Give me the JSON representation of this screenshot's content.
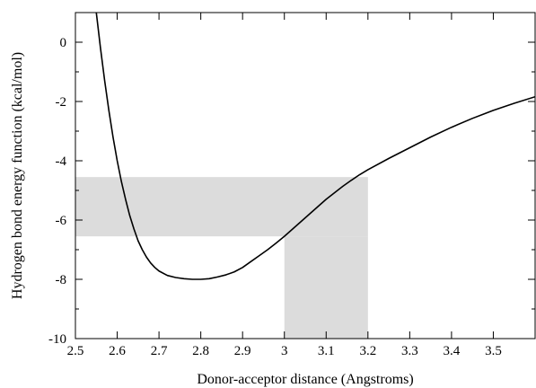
{
  "chart_data": {
    "type": "line",
    "title": "",
    "xlabel": "Donor-acceptor distance (Angstroms)",
    "ylabel": "Hydrogen bond energy function (kcal/mol)",
    "xlim": [
      2.5,
      3.6
    ],
    "ylim": [
      -10,
      1
    ],
    "xticks": [
      2.5,
      2.6,
      2.7,
      2.8,
      2.9,
      3.0,
      3.1,
      3.2,
      3.3,
      3.4,
      3.5
    ],
    "xtick_labels": [
      "2.5",
      "2.6",
      "2.7",
      "2.8",
      "2.9",
      "3",
      "3.1",
      "3.2",
      "3.3",
      "3.4",
      "3.5"
    ],
    "yticks": [
      -10,
      -8,
      -6,
      -4,
      -2,
      0
    ],
    "ytick_labels": [
      "-10",
      "-8",
      "-6",
      "-4",
      "-2",
      "0"
    ],
    "grid": false,
    "legend": "none",
    "series": [
      {
        "color": "#000000",
        "points": [
          [
            2.55,
            1.0
          ],
          [
            2.56,
            -0.2
          ],
          [
            2.57,
            -1.3
          ],
          [
            2.58,
            -2.3
          ],
          [
            2.59,
            -3.2
          ],
          [
            2.6,
            -4.0
          ],
          [
            2.61,
            -4.7
          ],
          [
            2.62,
            -5.3
          ],
          [
            2.63,
            -5.85
          ],
          [
            2.64,
            -6.3
          ],
          [
            2.65,
            -6.7
          ],
          [
            2.66,
            -7.0
          ],
          [
            2.67,
            -7.25
          ],
          [
            2.68,
            -7.45
          ],
          [
            2.69,
            -7.6
          ],
          [
            2.7,
            -7.72
          ],
          [
            2.72,
            -7.87
          ],
          [
            2.74,
            -7.94
          ],
          [
            2.76,
            -7.98
          ],
          [
            2.78,
            -8.0
          ],
          [
            2.8,
            -8.0
          ],
          [
            2.82,
            -7.98
          ],
          [
            2.84,
            -7.92
          ],
          [
            2.86,
            -7.85
          ],
          [
            2.88,
            -7.75
          ],
          [
            2.9,
            -7.6
          ],
          [
            2.92,
            -7.4
          ],
          [
            2.94,
            -7.2
          ],
          [
            2.96,
            -7.0
          ],
          [
            2.98,
            -6.78
          ],
          [
            3.0,
            -6.55
          ],
          [
            3.02,
            -6.3
          ],
          [
            3.04,
            -6.05
          ],
          [
            3.06,
            -5.8
          ],
          [
            3.08,
            -5.55
          ],
          [
            3.1,
            -5.3
          ],
          [
            3.12,
            -5.08
          ],
          [
            3.14,
            -4.86
          ],
          [
            3.16,
            -4.66
          ],
          [
            3.18,
            -4.47
          ],
          [
            3.2,
            -4.3
          ],
          [
            3.25,
            -3.92
          ],
          [
            3.3,
            -3.56
          ],
          [
            3.35,
            -3.2
          ],
          [
            3.4,
            -2.87
          ],
          [
            3.45,
            -2.57
          ],
          [
            3.5,
            -2.3
          ],
          [
            3.55,
            -2.06
          ],
          [
            3.6,
            -1.84
          ]
        ]
      }
    ],
    "shaded_regions": [
      {
        "x": [
          2.5,
          3.2
        ],
        "y": [
          -6.55,
          -4.55
        ],
        "color": "#dcdcdc"
      },
      {
        "x": [
          3.0,
          3.2
        ],
        "y": [
          -10,
          -6.55
        ],
        "color": "#dcdcdc"
      }
    ]
  }
}
